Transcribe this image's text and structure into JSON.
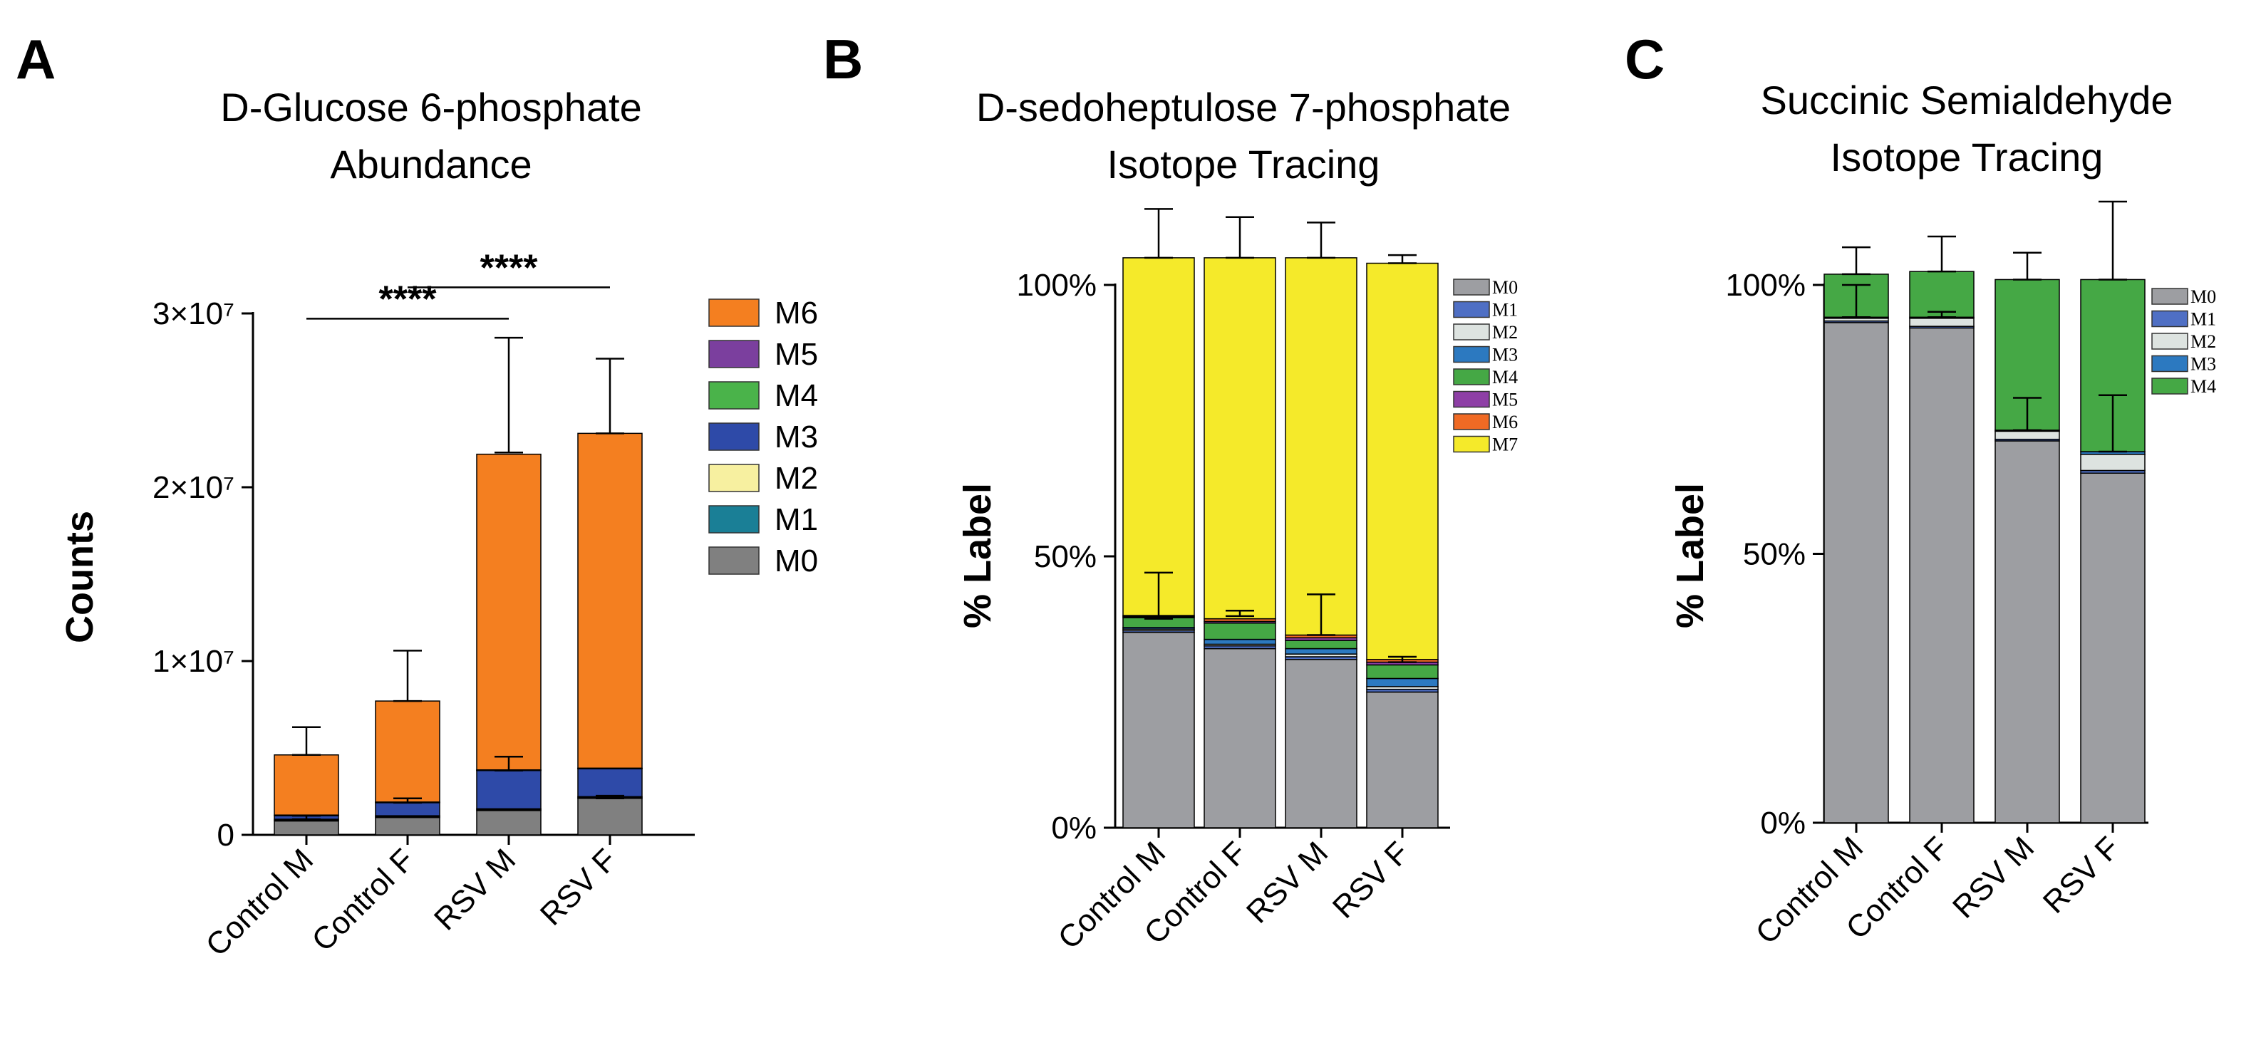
{
  "chart_data": [
    {
      "panel_letter": "A",
      "type": "bar",
      "stacked": true,
      "title": [
        "D-Glucose 6-phosphate",
        "Abundance"
      ],
      "xlabel": "",
      "ylabel": "Counts",
      "ylim": [
        0,
        30000000
      ],
      "y_ticks": [
        {
          "value": 0,
          "label": "0"
        },
        {
          "value": 10000000,
          "label": "1×10⁷"
        },
        {
          "value": 20000000,
          "label": "2×10⁷"
        },
        {
          "value": 30000000,
          "label": "3×10⁷"
        }
      ],
      "categories": [
        "Control M",
        "Control F",
        "RSV M",
        "RSV F"
      ],
      "series": [
        {
          "name": "M0",
          "color": "#808080",
          "values": [
            800000,
            1000000,
            1400000,
            2100000
          ]
        },
        {
          "name": "M1",
          "color": "#1a7f96",
          "values": [
            50000,
            50000,
            50000,
            50000
          ]
        },
        {
          "name": "M2",
          "color": "#f7f0a0",
          "values": [
            50000,
            50000,
            50000,
            50000
          ]
        },
        {
          "name": "M3",
          "color": "#2e4aa8",
          "values": [
            200000,
            750000,
            2200000,
            1600000
          ]
        },
        {
          "name": "M4",
          "color": "#4ab34a",
          "values": [
            20000,
            20000,
            20000,
            20000
          ]
        },
        {
          "name": "M5",
          "color": "#7b3f9e",
          "values": [
            20000,
            20000,
            20000,
            20000
          ]
        },
        {
          "name": "M6",
          "color": "#f47f20",
          "values": [
            3460000,
            5810000,
            18160000,
            19260000
          ]
        }
      ],
      "error_bars": [
        {
          "category": "Control M",
          "level": 900000,
          "top": 1100000
        },
        {
          "category": "Control M",
          "level": 4600000,
          "top": 6200000
        },
        {
          "category": "Control F",
          "level": 1850000,
          "top": 2100000
        },
        {
          "category": "Control F",
          "level": 7700000,
          "top": 10600000
        },
        {
          "category": "RSV M",
          "level": 3700000,
          "top": 4500000
        },
        {
          "category": "RSV M",
          "level": 22000000,
          "top": 28600000
        },
        {
          "category": "RSV F",
          "level": 2100000,
          "top": 2250000
        },
        {
          "category": "RSV F",
          "level": 23100000,
          "top": 27400000
        }
      ],
      "significance": [
        {
          "from": "Control M",
          "to": "RSV M",
          "label": "****",
          "y": 29700000
        },
        {
          "from": "Control F",
          "to": "RSV F",
          "label": "****",
          "y": 31500000
        }
      ],
      "legend_order": [
        "M6",
        "M5",
        "M4",
        "M3",
        "M2",
        "M1",
        "M0"
      ],
      "legend": "right"
    },
    {
      "panel_letter": "B",
      "type": "bar",
      "stacked": true,
      "title": [
        "D-sedoheptulose 7-phosphate",
        "Isotope Tracing"
      ],
      "xlabel": "",
      "ylabel": "% Label",
      "ylim": [
        0,
        100
      ],
      "y_ticks": [
        {
          "value": 0,
          "label": "0%"
        },
        {
          "value": 50,
          "label": "50%"
        },
        {
          "value": 100,
          "label": "100%"
        }
      ],
      "categories": [
        "Control M",
        "Control F",
        "RSV M",
        "RSV F"
      ],
      "series": [
        {
          "name": "M0",
          "color": "#9d9ea2",
          "values": [
            36,
            33,
            31,
            25
          ]
        },
        {
          "name": "M1",
          "color": "#4f6fc4",
          "values": [
            0.3,
            0.5,
            0.5,
            0.5
          ]
        },
        {
          "name": "M2",
          "color": "#dde3e0",
          "values": [
            0.3,
            0.3,
            0.5,
            0.5
          ]
        },
        {
          "name": "M3",
          "color": "#2c79c0",
          "values": [
            0.3,
            0.9,
            1,
            1.5
          ]
        },
        {
          "name": "M4",
          "color": "#45a845",
          "values": [
            1.8,
            3,
            1.5,
            2.5
          ]
        },
        {
          "name": "M5",
          "color": "#8e3fa6",
          "values": [
            0.2,
            0.3,
            0.5,
            0.5
          ]
        },
        {
          "name": "M6",
          "color": "#f06a24",
          "values": [
            0.2,
            0.5,
            0.5,
            0.5
          ]
        },
        {
          "name": "M7",
          "color": "#f5ea2a",
          "values": [
            65.9,
            66.5,
            69.5,
            73
          ]
        }
      ],
      "error_bars": [
        {
          "category": "Control M",
          "level": 38.5,
          "top": 47
        },
        {
          "category": "Control M",
          "level": 105,
          "top": 114
        },
        {
          "category": "Control F",
          "level": 39,
          "top": 40
        },
        {
          "category": "Control F",
          "level": 105,
          "top": 112.5
        },
        {
          "category": "RSV M",
          "level": 35.5,
          "top": 43
        },
        {
          "category": "RSV M",
          "level": 105,
          "top": 111.5
        },
        {
          "category": "RSV F",
          "level": 30.5,
          "top": 31.5
        },
        {
          "category": "RSV F",
          "level": 104,
          "top": 105.5
        }
      ],
      "legend_order": [
        "M0",
        "M1",
        "M2",
        "M3",
        "M4",
        "M5",
        "M6",
        "M7"
      ],
      "legend": "right"
    },
    {
      "panel_letter": "C",
      "type": "bar",
      "stacked": true,
      "title": [
        "Succinic Semialdehyde",
        "Isotope Tracing"
      ],
      "xlabel": "",
      "ylabel": "% Label",
      "ylim": [
        0,
        100
      ],
      "y_ticks": [
        {
          "value": 0,
          "label": "0%"
        },
        {
          "value": 50,
          "label": "50%"
        },
        {
          "value": 100,
          "label": "100%"
        }
      ],
      "categories": [
        "Control M",
        "Control F",
        "RSV M",
        "RSV F"
      ],
      "series": [
        {
          "name": "M0",
          "color": "#9d9ea2",
          "values": [
            93,
            92,
            71,
            65
          ]
        },
        {
          "name": "M1",
          "color": "#4f6fc4",
          "values": [
            0.3,
            0.3,
            0.3,
            0.5
          ]
        },
        {
          "name": "M2",
          "color": "#dde3e0",
          "values": [
            0.5,
            1.5,
            1.5,
            3
          ]
        },
        {
          "name": "M3",
          "color": "#2c79c0",
          "values": [
            0.2,
            0.2,
            0.2,
            0.5
          ]
        },
        {
          "name": "M4",
          "color": "#45a845",
          "values": [
            8,
            8.5,
            28,
            32
          ]
        }
      ],
      "error_bars": [
        {
          "category": "Control M",
          "level": 94,
          "top": 100
        },
        {
          "category": "Control M",
          "level": 102,
          "top": 107
        },
        {
          "category": "Control F",
          "level": 94,
          "top": 95
        },
        {
          "category": "Control F",
          "level": 102.5,
          "top": 109
        },
        {
          "category": "RSV M",
          "level": 73,
          "top": 79
        },
        {
          "category": "RSV M",
          "level": 101,
          "top": 106
        },
        {
          "category": "RSV F",
          "level": 69,
          "top": 79.5
        },
        {
          "category": "RSV F",
          "level": 101,
          "top": 115.5
        }
      ],
      "legend_order": [
        "M0",
        "M1",
        "M2",
        "M3",
        "M4"
      ],
      "legend": "right"
    }
  ]
}
